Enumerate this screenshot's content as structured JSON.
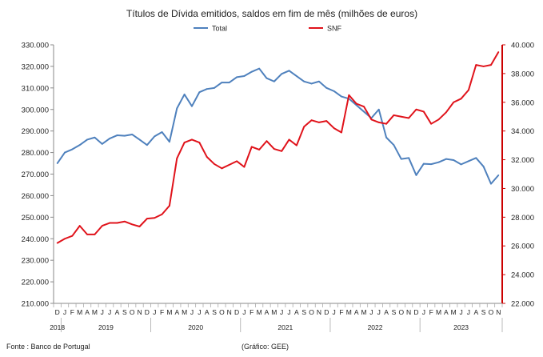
{
  "chart_data": {
    "type": "line",
    "title": "Títulos de Dívida emitidos, saldos em fim de mês  (milhões de euros)",
    "month_labels": [
      "D",
      "J",
      "F",
      "M",
      "A",
      "M",
      "J",
      "J",
      "A",
      "S",
      "O",
      "N",
      "D",
      "J",
      "F",
      "M",
      "A",
      "M",
      "J",
      "J",
      "A",
      "S",
      "O",
      "N",
      "D",
      "J",
      "F",
      "M",
      "A",
      "M",
      "J",
      "J",
      "A",
      "S",
      "O",
      "N",
      "D",
      "J",
      "F",
      "M",
      "A",
      "M",
      "J",
      "J",
      "A",
      "S",
      "O",
      "N",
      "D",
      "J",
      "F",
      "M",
      "A",
      "M",
      "J",
      "J",
      "A",
      "S",
      "O",
      "N"
    ],
    "year_groups": [
      {
        "label": "2018",
        "start": 0,
        "end": 0
      },
      {
        "label": "2019",
        "start": 1,
        "end": 12
      },
      {
        "label": "2020",
        "start": 13,
        "end": 24
      },
      {
        "label": "2021",
        "start": 25,
        "end": 36
      },
      {
        "label": "2022",
        "start": 37,
        "end": 48
      },
      {
        "label": "2023",
        "start": 49,
        "end": 59
      }
    ],
    "left_axis": {
      "min": 210000,
      "max": 330000,
      "step": 10000,
      "tick_labels": [
        "210.000",
        "220.000",
        "230.000",
        "240.000",
        "250.000",
        "260.000",
        "270.000",
        "280.000",
        "290.000",
        "300.000",
        "310.000",
        "320.000",
        "330.000"
      ]
    },
    "right_axis": {
      "min": 22000,
      "max": 40000,
      "step": 2000,
      "tick_labels": [
        "22.000",
        "24.000",
        "26.000",
        "28.000",
        "30.000",
        "32.000",
        "34.000",
        "36.000",
        "38.000",
        "40.000"
      ],
      "color": "#cc0000"
    },
    "series": [
      {
        "name": "Total",
        "axis": "left",
        "color": "#4f81bd",
        "values": [
          275000,
          280000,
          281500,
          283500,
          286000,
          287000,
          284000,
          286500,
          288000,
          287800,
          288400,
          286000,
          283500,
          287500,
          289500,
          285000,
          300500,
          307000,
          301500,
          308000,
          309500,
          310000,
          312500,
          312500,
          315000,
          315500,
          317500,
          319000,
          314500,
          313000,
          316500,
          318000,
          315500,
          313000,
          312000,
          313000,
          310000,
          308500,
          306000,
          305000,
          302000,
          299000,
          296000,
          300000,
          287000,
          283500,
          277000,
          277500,
          269500,
          274800,
          274600,
          275500,
          277000,
          276500,
          274500,
          276000,
          277500,
          273500,
          265500,
          269500
        ]
      },
      {
        "name": "SNF",
        "axis": "right",
        "color": "#e0131b",
        "values": [
          26200,
          26500,
          26700,
          27400,
          26800,
          26800,
          27400,
          27600,
          27600,
          27700,
          27500,
          27350,
          27900,
          27950,
          28200,
          28800,
          32100,
          33200,
          33400,
          33200,
          32200,
          31700,
          31400,
          31650,
          31900,
          31500,
          32900,
          32700,
          33300,
          32750,
          32600,
          33400,
          33000,
          34300,
          34750,
          34600,
          34700,
          34200,
          33900,
          36500,
          35900,
          35700,
          34800,
          34600,
          34500,
          35100,
          35000,
          34900,
          35500,
          35350,
          34500,
          34800,
          35300,
          36000,
          36250,
          36850,
          38600,
          38500,
          38600,
          39500
        ]
      }
    ]
  },
  "legend": {
    "total_label": "Total",
    "snf_label": "SNF"
  },
  "footer": {
    "source": "Fonte : Banco de Portugal",
    "credit": "(Gráfico:  GEE)"
  },
  "colors": {
    "total": "#4f81bd",
    "snf": "#e0131b",
    "right_axis": "#cc0000"
  }
}
